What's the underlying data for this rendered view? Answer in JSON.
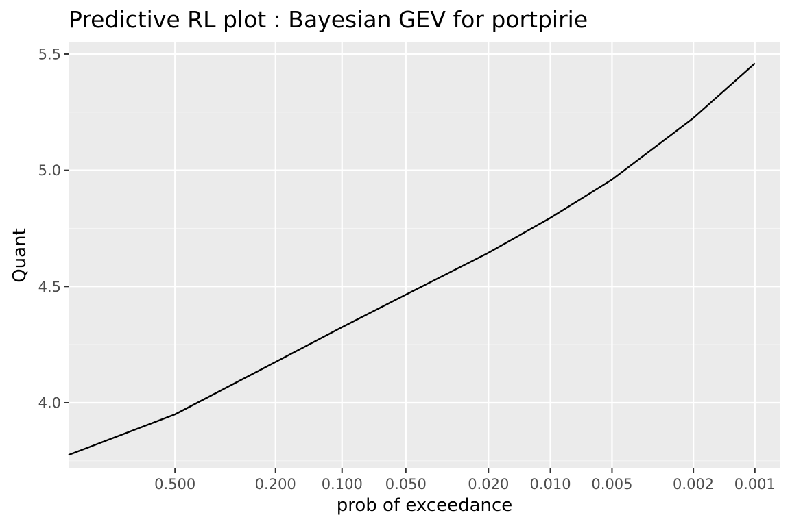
{
  "chart_data": {
    "type": "line",
    "title": "Predictive RL plot : Bayesian GEV for portpirie",
    "xlabel": "prob of exceedance",
    "ylabel": "Quant",
    "x_scale": "reversed log return period",
    "x_ticks": [
      "0.500",
      "0.200",
      "0.100",
      "0.050",
      "0.020",
      "0.010",
      "0.005",
      "0.002",
      "0.001"
    ],
    "y_ticks": [
      "4.0",
      "4.5",
      "5.0",
      "5.5"
    ],
    "xlim": [
      0.9,
      0.00075
    ],
    "ylim": [
      3.72,
      5.55
    ],
    "grid": true,
    "series": [
      {
        "color": "#000000",
        "x": [
          0.9,
          0.5,
          0.2,
          0.1,
          0.05,
          0.02,
          0.01,
          0.005,
          0.002,
          0.001
        ],
        "y": [
          3.775,
          3.95,
          4.175,
          4.325,
          4.465,
          4.645,
          4.795,
          4.96,
          5.225,
          5.46
        ]
      }
    ],
    "colors": {
      "panel_background": "#ebebeb",
      "grid_major": "#ffffff",
      "grid_minor": "#f5f5f5",
      "line": "#000000",
      "tick_text": "#4d4d4d"
    }
  }
}
